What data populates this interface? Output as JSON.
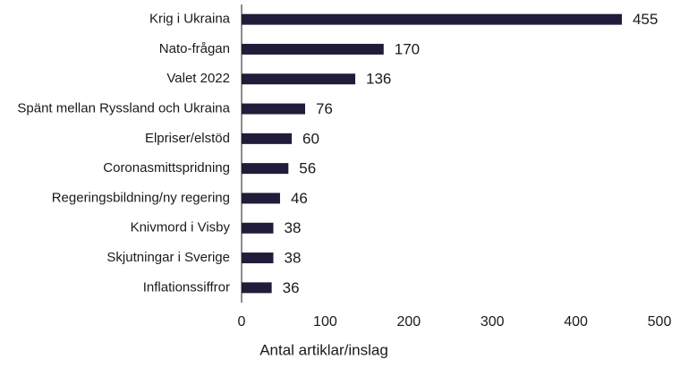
{
  "chart_data": {
    "type": "bar",
    "orientation": "horizontal",
    "x_label": "Antal artiklar/inslag",
    "categories": [
      "Krig i Ukraina",
      "Nato-frågan",
      "Valet 2022",
      "Spänt mellan Ryssland och Ukraina",
      "Elpriser/elstöd",
      "Coronasmittspridning",
      "Regeringsbildning/ny regering",
      "Knivmord i Visby",
      "Skjutningar i Sverige",
      "Inflationssiffror"
    ],
    "values": [
      455,
      170,
      136,
      76,
      60,
      56,
      46,
      38,
      38,
      36
    ],
    "color": "#1f1d3a",
    "xlim": [
      0,
      500
    ],
    "xticks": [
      0,
      100,
      200,
      300,
      400,
      500
    ],
    "grid": false
  }
}
